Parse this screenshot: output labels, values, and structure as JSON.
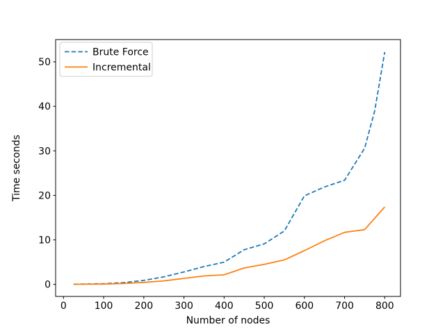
{
  "figure": {
    "background": "#ffffff",
    "axes_edge_color": "#000000"
  },
  "chart_data": {
    "type": "line",
    "title": "",
    "xlabel": "Number of nodes",
    "ylabel": "Time seconds",
    "xlim": [
      -19.6,
      839.3
    ],
    "ylim": [
      -2.7,
      55.0
    ],
    "xticks": [
      0,
      100,
      200,
      300,
      400,
      500,
      600,
      700,
      800
    ],
    "yticks": [
      0,
      10,
      20,
      30,
      40,
      50
    ],
    "grid": false,
    "legend": {
      "position": "upper left",
      "border_color": "#cccccc",
      "background": "#ffffff"
    },
    "series": [
      {
        "name": "Brute Force",
        "color": "#1f77b4",
        "style": "dashed",
        "points": [
          [
            25,
            0.05
          ],
          [
            50,
            0.07
          ],
          [
            100,
            0.15
          ],
          [
            150,
            0.4
          ],
          [
            200,
            0.9
          ],
          [
            250,
            1.7
          ],
          [
            300,
            2.8
          ],
          [
            350,
            4.0
          ],
          [
            400,
            5.0
          ],
          [
            450,
            7.8
          ],
          [
            500,
            9.1
          ],
          [
            550,
            12.0
          ],
          [
            600,
            19.9
          ],
          [
            650,
            21.9
          ],
          [
            700,
            23.4
          ],
          [
            750,
            30.6
          ],
          [
            775,
            39.0
          ],
          [
            800,
            52.2
          ]
        ]
      },
      {
        "name": "Incremental",
        "color": "#ff7f0e",
        "style": "solid",
        "points": [
          [
            25,
            0.03
          ],
          [
            50,
            0.04
          ],
          [
            100,
            0.08
          ],
          [
            150,
            0.2
          ],
          [
            200,
            0.45
          ],
          [
            250,
            0.8
          ],
          [
            300,
            1.35
          ],
          [
            350,
            1.9
          ],
          [
            400,
            2.15
          ],
          [
            450,
            3.7
          ],
          [
            500,
            4.5
          ],
          [
            550,
            5.5
          ],
          [
            600,
            7.6
          ],
          [
            650,
            9.8
          ],
          [
            700,
            11.7
          ],
          [
            750,
            12.3
          ],
          [
            800,
            17.4
          ]
        ]
      }
    ]
  }
}
